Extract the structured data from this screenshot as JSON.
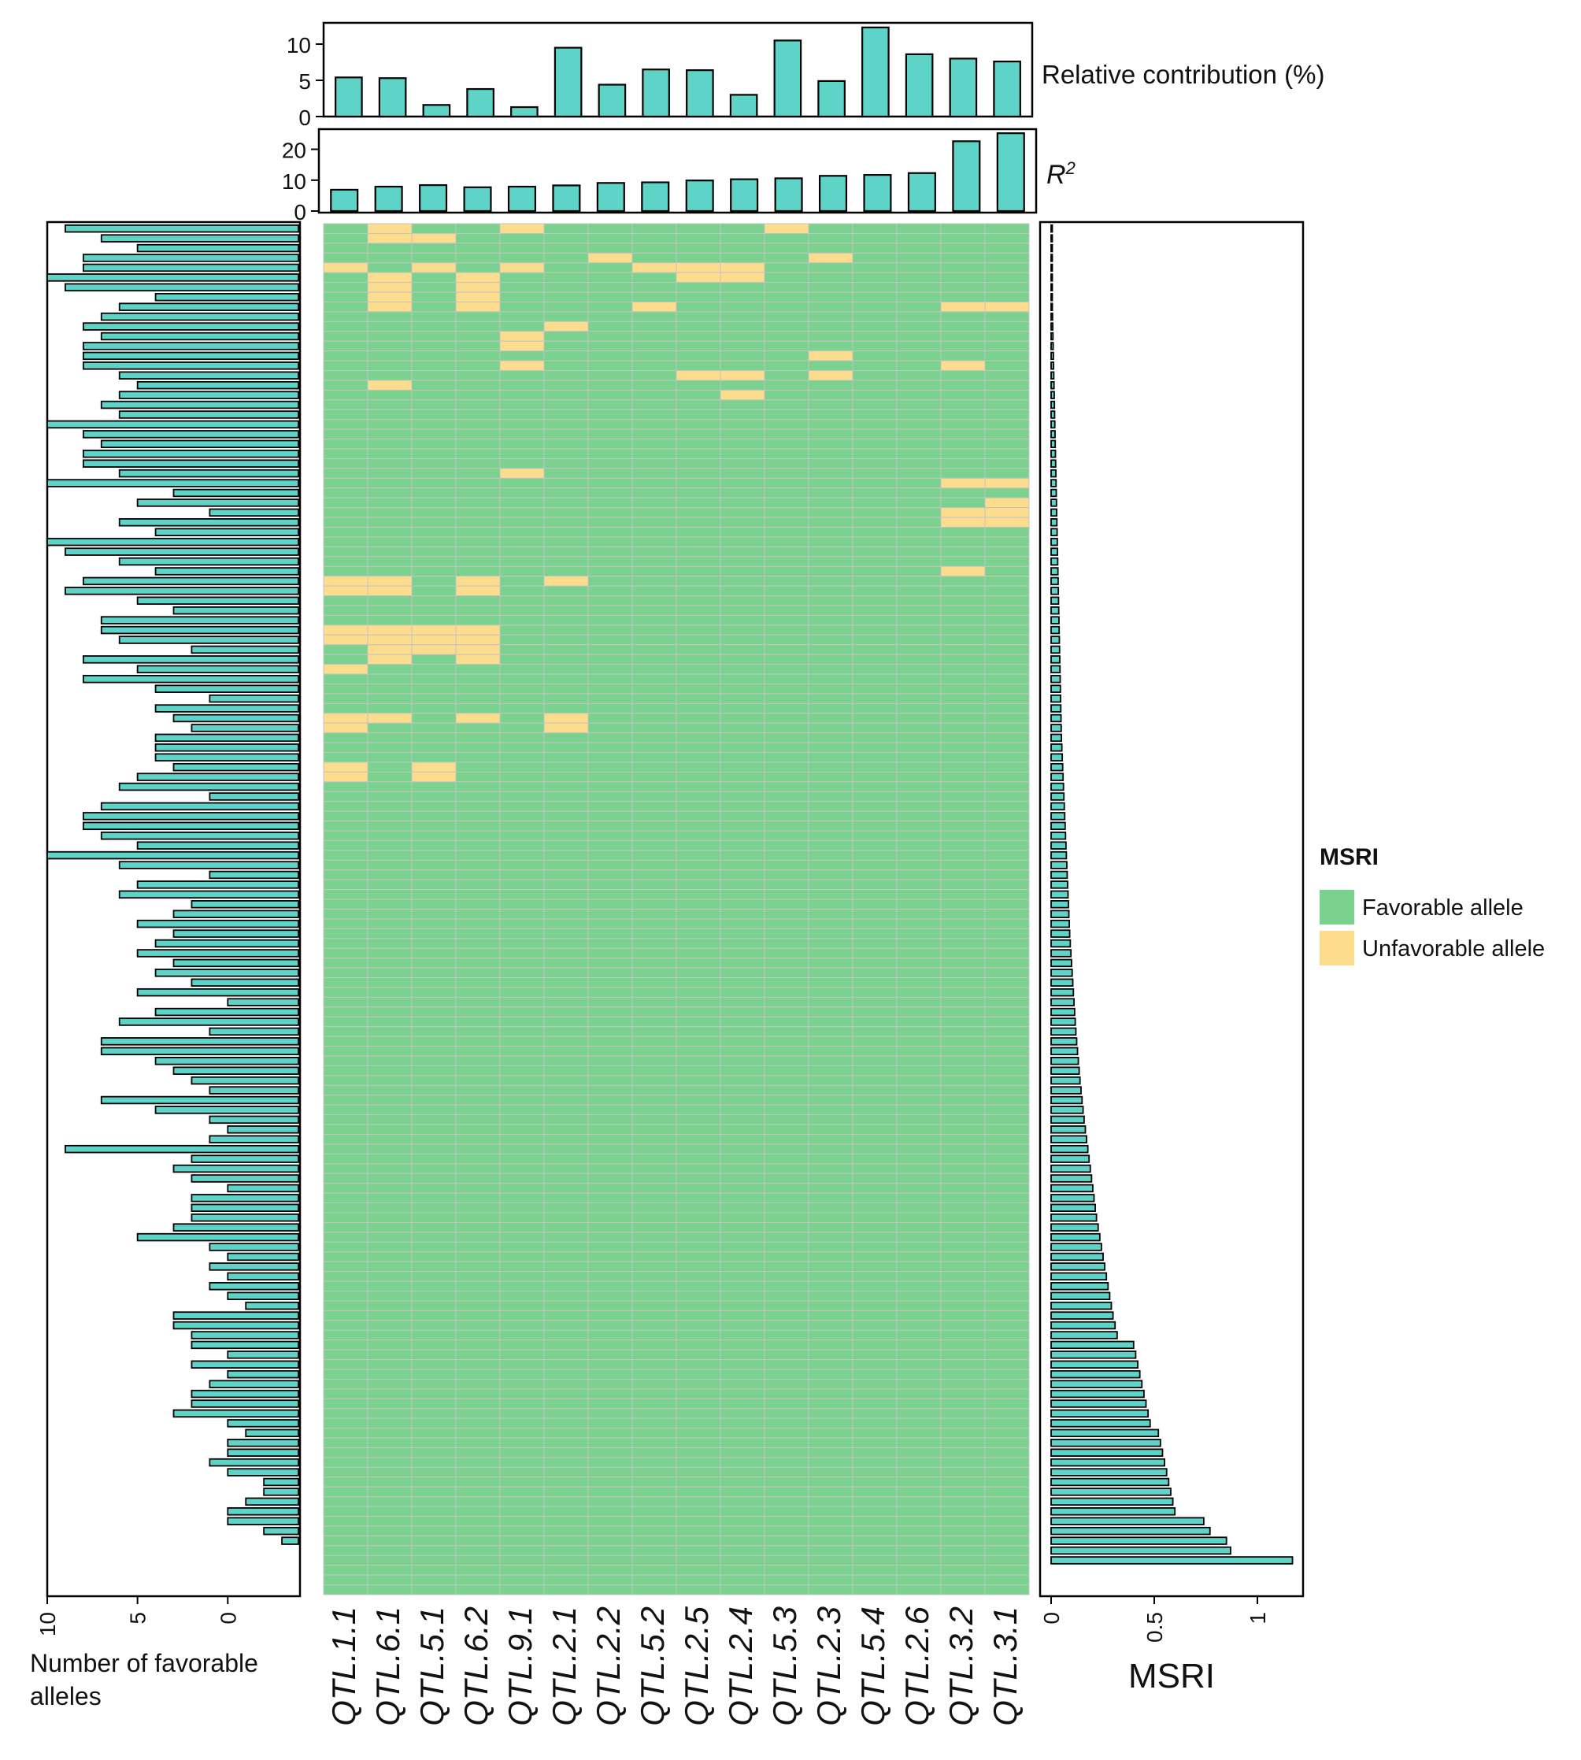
{
  "colors": {
    "bar_fill": "#5ED4C8",
    "favorable": "#7AD28E",
    "unfavorable": "#FCDC8D",
    "grid": "#C4C4C4"
  },
  "chart_data": [
    {
      "id": "relative-contribution",
      "type": "bar",
      "label": "Relative contribution (%)",
      "categories": [
        "QTL.1.1",
        "QTL.6.1",
        "QTL.5.1",
        "QTL.6.2",
        "QTL.9.1",
        "QTL.2.1",
        "QTL.2.2",
        "QTL.5.2",
        "QTL.2.5",
        "QTL.2.4",
        "QTL.5.3",
        "QTL.2.3",
        "QTL.5.4",
        "QTL.2.6",
        "QTL.3.2",
        "QTL.3.1"
      ],
      "values": [
        5.4,
        5.3,
        1.6,
        3.8,
        1.3,
        9.5,
        4.4,
        6.5,
        6.4,
        3.0,
        10.5,
        4.9,
        12.3,
        8.6,
        8.0,
        7.6
      ],
      "ylim": [
        0,
        12.5
      ],
      "yticks": [
        "0",
        "5",
        "10"
      ]
    },
    {
      "id": "r-squared",
      "type": "bar",
      "label": "R",
      "label_sup": "2",
      "categories": [
        "QTL.1.1",
        "QTL.6.1",
        "QTL.5.1",
        "QTL.6.2",
        "QTL.9.1",
        "QTL.2.1",
        "QTL.2.2",
        "QTL.5.2",
        "QTL.2.5",
        "QTL.2.4",
        "QTL.5.3",
        "QTL.2.3",
        "QTL.5.4",
        "QTL.2.6",
        "QTL.3.2",
        "QTL.3.1"
      ],
      "values": [
        6.9,
        7.9,
        8.4,
        7.7,
        7.9,
        8.3,
        9.1,
        9.3,
        9.9,
        10.3,
        10.6,
        11.4,
        11.7,
        12.3,
        22.6,
        25.2
      ],
      "ylim": [
        0,
        25.5
      ],
      "yticks": [
        "0",
        "10",
        "20"
      ]
    },
    {
      "id": "favorable-allele-counts",
      "type": "bar",
      "orientation": "horizontal",
      "xlabel": "Number of favorable alleles",
      "xlim": [
        10,
        -4
      ],
      "xticks": [
        "10",
        "5",
        "0"
      ],
      "values": [
        9,
        7,
        5,
        8,
        8,
        10,
        9,
        4,
        6,
        7,
        8,
        7,
        8,
        8,
        8,
        6,
        5,
        6,
        7,
        6,
        10,
        8,
        7,
        8,
        8,
        6,
        10,
        3,
        5,
        1,
        6,
        4,
        10,
        9,
        6,
        4,
        8,
        9,
        5,
        3,
        7,
        7,
        6,
        2,
        8,
        5,
        8,
        4,
        1,
        4,
        3,
        2,
        4,
        4,
        4,
        3,
        5,
        6,
        1,
        7,
        8,
        8,
        7,
        5,
        10,
        6,
        1,
        5,
        6,
        2,
        3,
        5,
        3,
        4,
        5,
        3,
        4,
        2,
        5,
        0,
        4,
        6,
        1,
        7,
        7,
        4,
        3,
        2,
        1,
        7,
        4,
        1,
        0,
        1,
        9,
        2,
        3,
        2,
        0,
        2,
        2,
        2,
        3,
        5,
        1,
        0,
        1,
        0,
        1,
        0,
        -1,
        3,
        3,
        2,
        2,
        0,
        2,
        0,
        1,
        2,
        2,
        3,
        0,
        -1,
        0,
        0,
        1,
        0,
        -2,
        -2,
        -1,
        0,
        0,
        -2,
        -3
      ]
    },
    {
      "id": "msri-values",
      "type": "bar",
      "orientation": "horizontal",
      "xlabel": "MSRI",
      "xlim": [
        0,
        1.22
      ],
      "xticks": [
        "0",
        "0.5",
        "1"
      ],
      "values": [
        0.0,
        0.0,
        0.0,
        0.0,
        0.001,
        0.002,
        0.004,
        0.005,
        0.006,
        0.007,
        0.008,
        0.009,
        0.01,
        0.011,
        0.012,
        0.013,
        0.014,
        0.015,
        0.016,
        0.017,
        0.018,
        0.019,
        0.02,
        0.021,
        0.022,
        0.023,
        0.024,
        0.025,
        0.026,
        0.027,
        0.028,
        0.029,
        0.03,
        0.031,
        0.032,
        0.033,
        0.034,
        0.035,
        0.036,
        0.037,
        0.038,
        0.039,
        0.04,
        0.041,
        0.042,
        0.043,
        0.044,
        0.045,
        0.046,
        0.047,
        0.048,
        0.049,
        0.05,
        0.052,
        0.054,
        0.056,
        0.058,
        0.06,
        0.062,
        0.064,
        0.066,
        0.068,
        0.07,
        0.072,
        0.074,
        0.076,
        0.078,
        0.08,
        0.082,
        0.084,
        0.086,
        0.088,
        0.09,
        0.093,
        0.096,
        0.099,
        0.102,
        0.105,
        0.108,
        0.111,
        0.114,
        0.117,
        0.12,
        0.124,
        0.128,
        0.132,
        0.136,
        0.14,
        0.145,
        0.15,
        0.155,
        0.16,
        0.166,
        0.172,
        0.178,
        0.184,
        0.19,
        0.196,
        0.202,
        0.208,
        0.214,
        0.22,
        0.228,
        0.236,
        0.244,
        0.252,
        0.26,
        0.268,
        0.276,
        0.284,
        0.292,
        0.3,
        0.31,
        0.32,
        0.4,
        0.41,
        0.42,
        0.43,
        0.44,
        0.45,
        0.46,
        0.47,
        0.48,
        0.52,
        0.53,
        0.54,
        0.55,
        0.56,
        0.57,
        0.58,
        0.59,
        0.6,
        0.74,
        0.77,
        0.85,
        0.87,
        1.17
      ]
    },
    {
      "id": "allele-heatmap",
      "type": "heatmap",
      "columns": [
        "QTL.1.1",
        "QTL.6.1",
        "QTL.5.1",
        "QTL.6.2",
        "QTL.9.1",
        "QTL.2.1",
        "QTL.2.2",
        "QTL.5.2",
        "QTL.2.5",
        "QTL.2.4",
        "QTL.5.3",
        "QTL.2.3",
        "QTL.5.4",
        "QTL.2.6",
        "QTL.3.2",
        "QTL.3.1"
      ],
      "cell_values": [
        "F",
        "U"
      ],
      "rows": [
        "FUFFUFFFFFUFFFFF",
        "FUUFFFFFFFFFFFFF",
        "FFFFFFFFFFFFFFFF",
        "FFFFFFUFFFFUFFFF",
        "UFUFUFFUUUFFFFFF",
        "FUFUFFFFUUFFFFFF",
        "FUFUFFFFFFFFFFFF",
        "FUFUFFFFFFFFFFFF",
        "FUFUFFFUFFFFFFUU",
        "FFFFFFFFFFFFFFFF",
        "FFFFFUFFFFFFFFFF",
        "FFFFUFFFFFFFFFFF",
        "FFFFUFFFFFFFFFFF",
        "FFFFFFFFFFFUFFFF",
        "FFFFUFFFFFFFFFUF",
        "FFFFFFFFUUFUFFFF",
        "FUFFFFFFFFFFFFFF",
        "FFFFFFFFFUFFFFFF",
        "FFFFFFFFFFFFFFFF",
        "FFFFFFFFFFFFFFFF",
        "FFFFFFFFFFFFFFFF",
        "FFFFFFFFFFFFFFFF",
        "FFFFFFFFFFFFFFFF",
        "FFFFFFFFFFFFFFFF",
        "FFFFFFFFFFFFFFFF",
        "FFFFUFFFFFFFFFFF",
        "FFFFFFFFFFFFFFUU",
        "FFFFFFFFFFFFFFFF",
        "FFFFFFFFFFFFFFFU",
        "FFFFFFFFFFFFFFUU",
        "FFFFFFFFFFFFFFUU",
        "FFFFFFFFFFFFFFFF",
        "FFFFFFFFFFFFFFFF",
        "FFFFFFFFFFFFFFFF",
        "FFFFFFFFFFFFFFFF",
        "FFFFFFFFFFFFFFUF",
        "UUFUFUFFFFFFFFFF",
        "UUFUFFFFFFFFFFFF",
        "FFFFFFFFFFFFFFFF",
        "FFFFFFFFFFFFFFFF",
        "FFFFFFFFFFFFFFFF",
        "UUUUFFFFFFFFFFFF",
        "UUUUFFFFFFFFFFFF",
        "FUUUFFFFFFFFFFFF",
        "FUFUFFFFFFFFFFFF",
        "UFFFFFFFFFFFFFFF",
        "FFFFFFFFFFFFFFFF",
        "FFFFFFFFFFFFFFFF",
        "FFFFFFFFFFFFFFFF",
        "FFFFFFFFFFFFFFFF",
        "UUFUFUFFFFFFFFFF",
        "UFFFFUFFFFFFFFFF",
        "FFFFFFFFFFFFFFFF",
        "FFFFFFFFFFFFFFFF",
        "FFFFFFFFFFFFFFFF",
        "UFUFFFFFFFFFFFFF",
        "UFUFFFFFFFFFFFFF",
        "FFFFFFFFFFFFFFFF",
        "FFFFFFFFFFFFFFFF",
        "FFFFFFFFFFFFFFFF",
        "FFFFFFFFFFFFFFFF",
        "FFFFFFFFFFFFFFFF",
        "FFFFFFFFFFFFFFFF",
        "FFFFFFFFFFFFFFFF",
        "FFFFFFFFFFFFFFFF",
        "FFFFFFFFFFFFFFFF",
        "FFFFFFFFFFFFFFFF",
        "FFFFFFFFFFFFFFFF",
        "FFFFFFFFFFFFFFFF",
        "FFFFFFFFFFFFFFFF",
        "FFFFFFFFFFFFFFFF",
        "FFFFFFFFFFFFFFFF",
        "FFFFFFFFFFFFFFFF",
        "FFFFFFFFFFFFFFFF",
        "FFFFFFFFFFFFFFFF",
        "FFFFFFFFFFFFFFFF",
        "FFFFFFFFFFFFFFFF",
        "FFFFFFFFFFFFFFFF",
        "FFFFFFFFFFFFFFFF",
        "FFFFFFFFFFFFFFFF",
        "FFFFFFFFFFFFFFFF",
        "FFFFFFFFFFFFFFFF",
        "FFFFFFFFFFFFFFFF",
        "FFFFFFFFFFFFFFFF",
        "FFFFFFFFFFFFFFFF",
        "FFFFFFFFFFFFFFFF",
        "FFFFFFFFFFFFFFFF",
        "FFFFFFFFFFFFFFFF",
        "FFFFFFFFFFFFFFFF",
        "FFFFFFFFFFFFFFFF",
        "FFFFFFFFFFFFFFFF",
        "FFFFFFFFFFFFFFFF",
        "FFFFFFFFFFFFFFFF",
        "FFFFFFFFFFFFFFFF",
        "FFFFFFFFFFFFFFFF",
        "FFFFFFFFFFFFFFFF",
        "FFFFFFFFFFFFFFFF",
        "FFFFFFFFFFFFFFFF",
        "FFFFFFFFFFFFFFFF",
        "FFFFFFFFFFFFFFFF",
        "FFFFFFFFFFFFFFFF",
        "FFFFFFFFFFFFFFFF",
        "FFFFFFFFFFFFFFFF",
        "FFFFFFFFFFFFFFFF",
        "FFFFFFFFFFFFFFFF",
        "FFFFFFFFFFFFFFFF",
        "FFFFFFFFFFFFFFFF",
        "FFFFFFFFFFFFFFFF",
        "FFFFFFFFFFFFFFFF",
        "FFFFFFFFFFFFFFFF",
        "FFFFFFFFFFFFFFFF",
        "FFFFFFFFFFFFFFFF",
        "FFFFFFFFFFFFFFFF",
        "FFFFFFFFFFFFFFFF",
        "FFFFFFFFFFFFFFFF",
        "FFFFFFFFFFFFFFFF",
        "FFFFFFFFFFFFFFFF",
        "FFFFFFFFFFFFFFFF",
        "FFFFFFFFFFFFFFFF",
        "FFFFFFFFFFFFFFFF",
        "FFFFFFFFFFFFFFFF",
        "FFFFFFFFFFFFFFFF",
        "FFFFFFFFFFFFFFFF",
        "FFFFFFFFFFFFFFFF",
        "FFFFFFFFFFFFFFFF",
        "FFFFFFFFFFFFFFFF",
        "FFFFFFFFFFFFFFFF",
        "FFFFFFFFFFFFFFFF",
        "FFFFFFFFFFFFFFFF",
        "FFFFFFFFFFFFFFFF",
        "FFFFFFFFFFFFFFFF",
        "FFFFFFFFFFFFFFFF",
        "FFFFFFFFFFFFFFFF",
        "FFFFFFFFFFFFFFFF",
        "FFFFFFFFFFFFFFFF",
        "FFFFFFFFFFFFFFFF",
        "FFFFFFFFFFFFFFFF",
        "FFFFFFFFFFFFFFFF",
        "FFFFFFFFFFFFFFFF",
        "FFFFFFFFFFFFFFFF"
      ]
    }
  ],
  "legend": {
    "title": "MSRI",
    "items": [
      {
        "label": "Favorable allele"
      },
      {
        "label": "Unfavorable allele"
      }
    ]
  }
}
